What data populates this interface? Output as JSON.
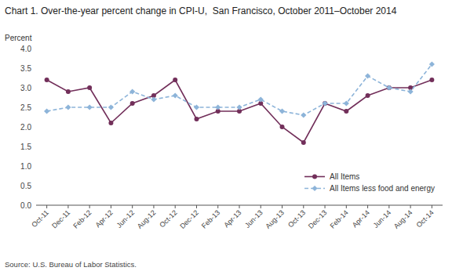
{
  "chart_data": {
    "type": "line",
    "title": "Chart 1. Over-the-year percent change in CPI-U,  San Francisco, October 2011–October 2014",
    "ylabel": "Percent",
    "source": "Source: U.S. Bureau of Labor Statistics.",
    "categories": [
      "Oct-11",
      "Dec-11",
      "Feb-12",
      "Apr-12",
      "Jun-12",
      "Aug-12",
      "Oct-12",
      "Dec-12",
      "Feb-13",
      "Apr-13",
      "Jun-13",
      "Aug-13",
      "Oct-13",
      "Dec-13",
      "Feb-14",
      "Apr-14",
      "Jun-14",
      "Aug-14",
      "Oct-14"
    ],
    "series": [
      {
        "name": "All Items",
        "color": "#722F5A",
        "marker": "circle",
        "line_style": "solid",
        "values": [
          3.2,
          2.9,
          3.0,
          2.1,
          2.6,
          2.8,
          3.2,
          2.2,
          2.4,
          2.4,
          2.6,
          2.0,
          1.6,
          2.6,
          2.4,
          2.8,
          3.0,
          3.0,
          3.2
        ]
      },
      {
        "name": "All Items less food and energy",
        "color": "#8DB4D9",
        "marker": "diamond",
        "line_style": "dashed",
        "values": [
          2.4,
          2.5,
          2.5,
          2.5,
          2.9,
          2.7,
          2.8,
          2.5,
          2.5,
          2.5,
          2.7,
          2.4,
          2.3,
          2.6,
          2.6,
          3.3,
          3.0,
          2.9,
          3.6
        ]
      }
    ],
    "ylim": [
      0.0,
      4.0
    ],
    "yticks": [
      {
        "value": 0,
        "label": "0.0"
      },
      0.5,
      {
        "value": 1,
        "label": "1.0"
      },
      1.5,
      {
        "value": 2,
        "label": "2.0"
      },
      2.5,
      {
        "value": 3,
        "label": "3.0"
      },
      3.5,
      {
        "value": 4,
        "label": "4.0"
      }
    ],
    "grid": false,
    "legend": "lower right"
  }
}
